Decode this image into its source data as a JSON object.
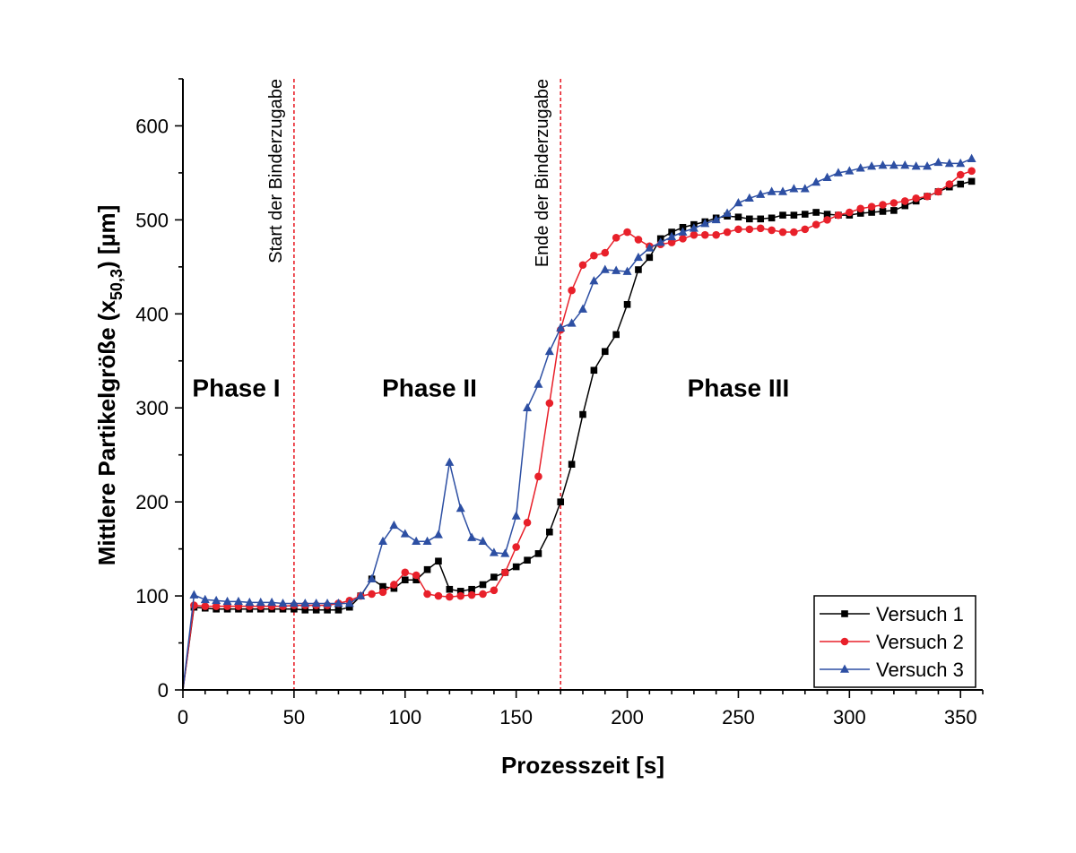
{
  "chart_data": {
    "type": "line",
    "xlabel": "Prozesszeit [s]",
    "ylabel_main": "Mittlere Partikelgröße (x",
    "ylabel_sub": "50,3",
    "ylabel_tail": ") [µm]",
    "xlim": [
      0,
      360
    ],
    "ylim": [
      0,
      650
    ],
    "xticks": [
      0,
      50,
      100,
      150,
      200,
      250,
      300,
      350
    ],
    "yticks": [
      0,
      100,
      200,
      300,
      400,
      500,
      600
    ],
    "legend_position": "bottom-right",
    "vlines": [
      {
        "x": 50,
        "label": "Start der Binderzugabe",
        "color": "#e8202a"
      },
      {
        "x": 170,
        "label": "Ende der Binderzugabe",
        "color": "#e8202a"
      }
    ],
    "annotations": [
      {
        "text": "Phase I",
        "x": 24,
        "y": 312
      },
      {
        "text": "Phase II",
        "x": 111,
        "y": 312
      },
      {
        "text": "Phase III",
        "x": 250,
        "y": 312
      }
    ],
    "series": [
      {
        "name": "Versuch 1",
        "color": "#000000",
        "marker": "square",
        "points": [
          [
            0,
            0
          ],
          [
            5,
            88
          ],
          [
            10,
            87
          ],
          [
            15,
            86
          ],
          [
            20,
            86
          ],
          [
            25,
            86
          ],
          [
            30,
            86
          ],
          [
            35,
            86
          ],
          [
            40,
            86
          ],
          [
            45,
            86
          ],
          [
            50,
            86
          ],
          [
            55,
            85
          ],
          [
            60,
            85
          ],
          [
            65,
            85
          ],
          [
            70,
            85
          ],
          [
            75,
            88
          ],
          [
            80,
            100
          ],
          [
            85,
            118
          ],
          [
            90,
            110
          ],
          [
            95,
            108
          ],
          [
            100,
            117
          ],
          [
            105,
            117
          ],
          [
            110,
            128
          ],
          [
            115,
            137
          ],
          [
            120,
            107
          ],
          [
            125,
            105
          ],
          [
            130,
            107
          ],
          [
            135,
            112
          ],
          [
            140,
            120
          ],
          [
            145,
            125
          ],
          [
            150,
            131
          ],
          [
            155,
            138
          ],
          [
            160,
            145
          ],
          [
            165,
            168
          ],
          [
            170,
            200
          ],
          [
            175,
            240
          ],
          [
            180,
            293
          ],
          [
            185,
            340
          ],
          [
            190,
            360
          ],
          [
            195,
            378
          ],
          [
            200,
            410
          ],
          [
            205,
            447
          ],
          [
            210,
            460
          ],
          [
            215,
            480
          ],
          [
            220,
            487
          ],
          [
            225,
            492
          ],
          [
            230,
            495
          ],
          [
            235,
            498
          ],
          [
            240,
            502
          ],
          [
            245,
            504
          ],
          [
            250,
            503
          ],
          [
            255,
            501
          ],
          [
            260,
            501
          ],
          [
            265,
            502
          ],
          [
            270,
            505
          ],
          [
            275,
            505
          ],
          [
            280,
            506
          ],
          [
            285,
            508
          ],
          [
            290,
            506
          ],
          [
            295,
            505
          ],
          [
            300,
            505
          ],
          [
            305,
            507
          ],
          [
            310,
            508
          ],
          [
            315,
            509
          ],
          [
            320,
            510
          ],
          [
            325,
            515
          ],
          [
            330,
            520
          ],
          [
            335,
            525
          ],
          [
            340,
            530
          ],
          [
            345,
            535
          ],
          [
            350,
            538
          ],
          [
            355,
            541
          ]
        ]
      },
      {
        "name": "Versuch 2",
        "color": "#e8202a",
        "marker": "circle",
        "points": [
          [
            0,
            0
          ],
          [
            5,
            90
          ],
          [
            10,
            89
          ],
          [
            15,
            89
          ],
          [
            20,
            89
          ],
          [
            25,
            89
          ],
          [
            30,
            89
          ],
          [
            35,
            89
          ],
          [
            40,
            89
          ],
          [
            45,
            89
          ],
          [
            50,
            90
          ],
          [
            55,
            90
          ],
          [
            60,
            90
          ],
          [
            65,
            90
          ],
          [
            70,
            92
          ],
          [
            75,
            95
          ],
          [
            80,
            100
          ],
          [
            85,
            102
          ],
          [
            90,
            104
          ],
          [
            95,
            112
          ],
          [
            100,
            125
          ],
          [
            105,
            122
          ],
          [
            110,
            102
          ],
          [
            115,
            100
          ],
          [
            120,
            99
          ],
          [
            125,
            100
          ],
          [
            130,
            101
          ],
          [
            135,
            102
          ],
          [
            140,
            106
          ],
          [
            145,
            125
          ],
          [
            150,
            152
          ],
          [
            155,
            178
          ],
          [
            160,
            227
          ],
          [
            165,
            305
          ],
          [
            170,
            383
          ],
          [
            175,
            425
          ],
          [
            180,
            452
          ],
          [
            185,
            462
          ],
          [
            190,
            465
          ],
          [
            195,
            481
          ],
          [
            200,
            487
          ],
          [
            205,
            479
          ],
          [
            210,
            472
          ],
          [
            215,
            474
          ],
          [
            220,
            476
          ],
          [
            225,
            480
          ],
          [
            230,
            484
          ],
          [
            235,
            484
          ],
          [
            240,
            484
          ],
          [
            245,
            487
          ],
          [
            250,
            490
          ],
          [
            255,
            490
          ],
          [
            260,
            491
          ],
          [
            265,
            489
          ],
          [
            270,
            487
          ],
          [
            275,
            487
          ],
          [
            280,
            490
          ],
          [
            285,
            495
          ],
          [
            290,
            500
          ],
          [
            295,
            505
          ],
          [
            300,
            508
          ],
          [
            305,
            512
          ],
          [
            310,
            514
          ],
          [
            315,
            516
          ],
          [
            320,
            518
          ],
          [
            325,
            520
          ],
          [
            330,
            523
          ],
          [
            335,
            525
          ],
          [
            340,
            530
          ],
          [
            345,
            538
          ],
          [
            350,
            548
          ],
          [
            355,
            552
          ]
        ]
      },
      {
        "name": "Versuch 3",
        "color": "#2d4fa3",
        "marker": "triangle",
        "points": [
          [
            0,
            0
          ],
          [
            5,
            101
          ],
          [
            10,
            96
          ],
          [
            15,
            95
          ],
          [
            20,
            94
          ],
          [
            25,
            94
          ],
          [
            30,
            93
          ],
          [
            35,
            93
          ],
          [
            40,
            93
          ],
          [
            45,
            92
          ],
          [
            50,
            92
          ],
          [
            55,
            92
          ],
          [
            60,
            92
          ],
          [
            65,
            92
          ],
          [
            70,
            92
          ],
          [
            75,
            92
          ],
          [
            80,
            100
          ],
          [
            85,
            118
          ],
          [
            90,
            158
          ],
          [
            95,
            175
          ],
          [
            100,
            166
          ],
          [
            105,
            158
          ],
          [
            110,
            158
          ],
          [
            115,
            165
          ],
          [
            120,
            242
          ],
          [
            125,
            193
          ],
          [
            130,
            162
          ],
          [
            135,
            158
          ],
          [
            140,
            146
          ],
          [
            145,
            145
          ],
          [
            150,
            185
          ],
          [
            155,
            300
          ],
          [
            160,
            325
          ],
          [
            165,
            360
          ],
          [
            170,
            385
          ],
          [
            175,
            390
          ],
          [
            180,
            405
          ],
          [
            185,
            435
          ],
          [
            190,
            447
          ],
          [
            195,
            446
          ],
          [
            200,
            445
          ],
          [
            205,
            460
          ],
          [
            210,
            470
          ],
          [
            215,
            476
          ],
          [
            220,
            482
          ],
          [
            225,
            487
          ],
          [
            230,
            491
          ],
          [
            235,
            496
          ],
          [
            240,
            500
          ],
          [
            245,
            507
          ],
          [
            250,
            518
          ],
          [
            255,
            523
          ],
          [
            260,
            527
          ],
          [
            265,
            530
          ],
          [
            270,
            530
          ],
          [
            275,
            533
          ],
          [
            280,
            533
          ],
          [
            285,
            540
          ],
          [
            290,
            545
          ],
          [
            295,
            550
          ],
          [
            300,
            552
          ],
          [
            305,
            555
          ],
          [
            310,
            557
          ],
          [
            315,
            558
          ],
          [
            320,
            558
          ],
          [
            325,
            558
          ],
          [
            330,
            557
          ],
          [
            335,
            557
          ],
          [
            340,
            561
          ],
          [
            345,
            560
          ],
          [
            350,
            560
          ],
          [
            355,
            565
          ]
        ]
      }
    ]
  }
}
